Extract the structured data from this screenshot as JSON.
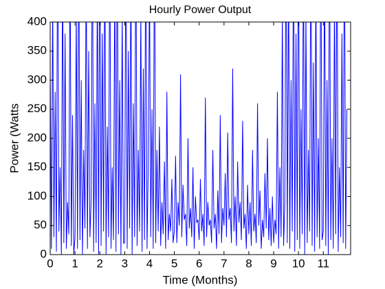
{
  "chart_data": {
    "type": "line",
    "title": "Hourly Power Output",
    "xlabel": "Time (Months)",
    "ylabel": "Power (Watts",
    "color": "#0000ff",
    "xlim": [
      0,
      12.1
    ],
    "xticks": [
      0,
      1,
      2,
      3,
      4,
      5,
      6,
      7,
      8,
      9,
      10,
      11
    ],
    "ylim": [
      0,
      400
    ],
    "yticks": [
      0,
      50,
      100,
      150,
      200,
      250,
      300,
      350,
      400
    ],
    "x": [
      0,
      0.05,
      0.1,
      0.15,
      0.2,
      0.25,
      0.3,
      0.35,
      0.4,
      0.45,
      0.5,
      0.55,
      0.6,
      0.65,
      0.7,
      0.75,
      0.8,
      0.85,
      0.9,
      0.95,
      1,
      1.05,
      1.1,
      1.15,
      1.2,
      1.25,
      1.3,
      1.35,
      1.4,
      1.45,
      1.5,
      1.55,
      1.6,
      1.65,
      1.7,
      1.75,
      1.8,
      1.85,
      1.9,
      1.95,
      2,
      2.05,
      2.1,
      2.15,
      2.2,
      2.25,
      2.3,
      2.35,
      2.4,
      2.45,
      2.5,
      2.55,
      2.6,
      2.65,
      2.7,
      2.75,
      2.8,
      2.85,
      2.9,
      2.95,
      3,
      3.05,
      3.1,
      3.15,
      3.2,
      3.25,
      3.3,
      3.35,
      3.4,
      3.45,
      3.5,
      3.55,
      3.6,
      3.65,
      3.7,
      3.75,
      3.8,
      3.85,
      3.9,
      3.95,
      4,
      4.05,
      4.1,
      4.15,
      4.2,
      4.25,
      4.3,
      4.35,
      4.4,
      4.45,
      4.5,
      4.55,
      4.6,
      4.65,
      4.7,
      4.75,
      4.8,
      4.85,
      4.9,
      4.95,
      5,
      5.05,
      5.1,
      5.15,
      5.2,
      5.25,
      5.3,
      5.35,
      5.4,
      5.45,
      5.5,
      5.55,
      5.6,
      5.65,
      5.7,
      5.75,
      5.8,
      5.85,
      5.9,
      5.95,
      6,
      6.05,
      6.1,
      6.15,
      6.2,
      6.25,
      6.3,
      6.35,
      6.4,
      6.45,
      6.5,
      6.55,
      6.6,
      6.65,
      6.7,
      6.75,
      6.8,
      6.85,
      6.9,
      6.95,
      7,
      7.05,
      7.1,
      7.15,
      7.2,
      7.25,
      7.3,
      7.35,
      7.4,
      7.45,
      7.5,
      7.55,
      7.6,
      7.65,
      7.7,
      7.75,
      7.8,
      7.85,
      7.9,
      7.95,
      8,
      8.05,
      8.1,
      8.15,
      8.2,
      8.25,
      8.3,
      8.35,
      8.4,
      8.45,
      8.5,
      8.55,
      8.6,
      8.65,
      8.7,
      8.75,
      8.8,
      8.85,
      8.9,
      8.95,
      9,
      9.05,
      9.1,
      9.15,
      9.2,
      9.25,
      9.3,
      9.35,
      9.4,
      9.45,
      9.5,
      9.55,
      9.6,
      9.65,
      9.7,
      9.75,
      9.8,
      9.85,
      9.9,
      9.95,
      10,
      10.05,
      10.1,
      10.15,
      10.2,
      10.25,
      10.3,
      10.35,
      10.4,
      10.45,
      10.5,
      10.55,
      10.6,
      10.65,
      10.7,
      10.75,
      10.8,
      10.85,
      10.9,
      10.95,
      11,
      11.05,
      11.1,
      11.15,
      11.2,
      11.25,
      11.3,
      11.35,
      11.4,
      11.45,
      11.5,
      11.55,
      11.6,
      11.65,
      11.7,
      11.75,
      11.8,
      11.85,
      11.9,
      11.95
    ],
    "values": [
      320,
      10,
      450,
      30,
      280,
      5,
      600,
      40,
      150,
      0,
      500,
      20,
      380,
      10,
      90,
      35,
      550,
      15,
      240,
      0,
      30,
      420,
      10,
      600,
      25,
      300,
      0,
      180,
      45,
      520,
      10,
      350,
      30,
      90,
      600,
      5,
      260,
      20,
      480,
      0,
      600,
      15,
      380,
      40,
      550,
      0,
      220,
      30,
      600,
      10,
      150,
      25,
      480,
      5,
      600,
      35,
      300,
      0,
      420,
      20,
      20,
      600,
      10,
      350,
      45,
      500,
      0,
      260,
      30,
      600,
      15,
      180,
      40,
      420,
      5,
      320,
      25,
      600,
      10,
      150,
      480,
      30,
      250,
      10,
      600,
      20,
      180,
      40,
      220,
      15,
      90,
      35,
      160,
      10,
      280,
      25,
      70,
      40,
      130,
      20,
      40,
      170,
      20,
      90,
      50,
      310,
      30,
      120,
      60,
      70,
      15,
      200,
      45,
      80,
      30,
      150,
      10,
      100,
      55,
      60,
      25,
      130,
      40,
      70,
      15,
      270,
      30,
      90,
      50,
      60,
      20,
      180,
      45,
      70,
      10,
      110,
      35,
      240,
      20,
      80,
      50,
      140,
      30,
      210,
      60,
      80,
      20,
      320,
      40,
      100,
      15,
      160,
      55,
      90,
      25,
      230,
      45,
      70,
      10,
      120,
      35,
      90,
      15,
      180,
      40,
      70,
      20,
      260,
      50,
      110,
      10,
      60,
      30,
      140,
      45,
      200,
      25,
      80,
      15,
      100,
      20,
      60,
      35,
      280,
      10,
      150,
      30,
      420,
      15,
      90,
      600,
      20,
      500,
      10,
      300,
      40,
      600,
      5,
      380,
      25,
      600,
      10,
      250,
      35,
      550,
      0,
      420,
      20,
      180,
      40,
      600,
      15,
      330,
      5,
      480,
      30,
      200,
      10,
      600,
      25,
      40,
      520,
      15,
      300,
      0,
      600,
      25,
      200,
      10,
      450,
      35,
      600,
      5,
      150,
      30,
      380,
      20,
      600,
      10,
      250
    ]
  }
}
